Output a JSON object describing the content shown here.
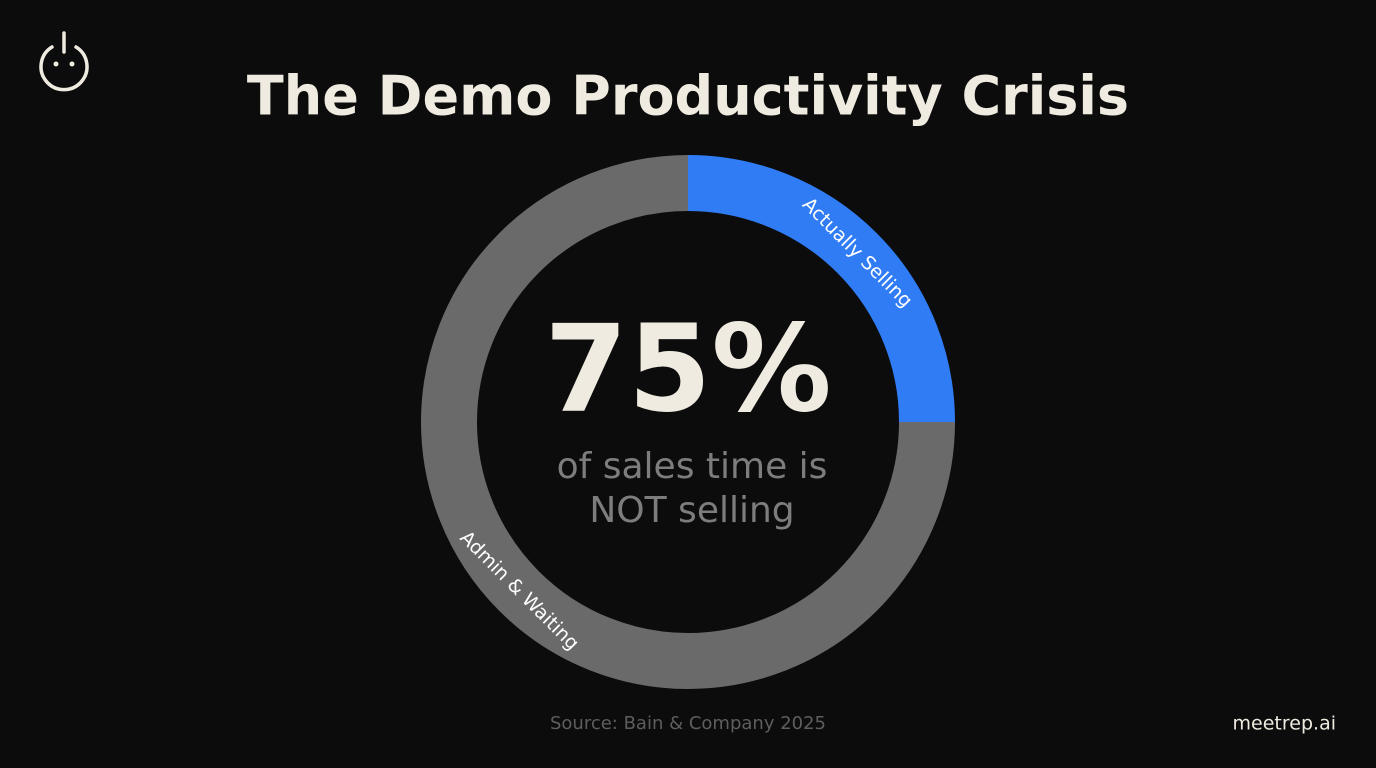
{
  "chart_data": {
    "type": "donut",
    "title": "The Demo Productivity Crisis",
    "categories": [
      "Actually Selling",
      "Admin & Waiting"
    ],
    "values": [
      25,
      75
    ],
    "colors": [
      "#2f7cf5",
      "#6a6a6a"
    ],
    "center_text": "75%",
    "center_caption": [
      "of sales time is",
      "NOT selling"
    ],
    "source": "Source: Bain & Company 2025",
    "brand": "meetrep.ai"
  }
}
